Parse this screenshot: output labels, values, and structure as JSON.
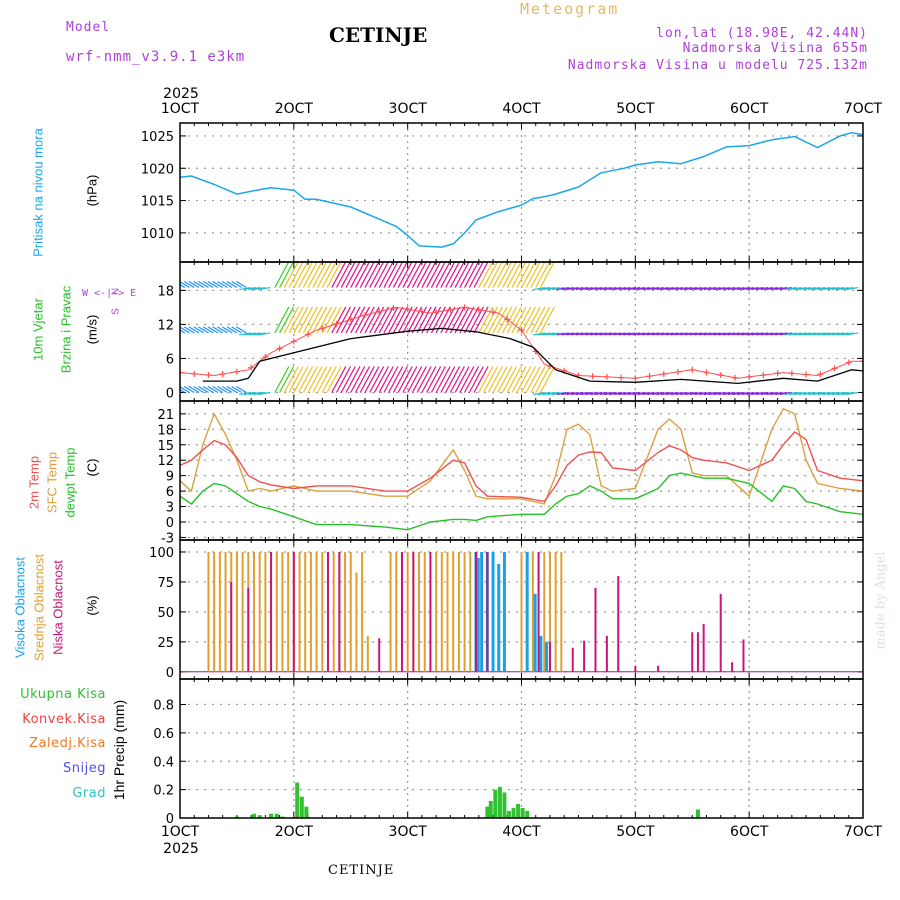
{
  "header": {
    "model_label": "Model",
    "model_name": "wrf-nmm_v3.9.1 e3km",
    "title": "CETINJE",
    "meteogram": "Meteogram",
    "lonlat": "lon,lat (18.98E, 42.44N)",
    "elevation": "Nadmorska Visina 655m",
    "model_elevation": "Nadmorska Visina u modelu 725.132m",
    "footer_title": "CETINJE",
    "watermark": "made by Angel"
  },
  "colors": {
    "pressure": "#1aa7ec",
    "wind_speed": "#000000",
    "gust": "#ff5050",
    "temp2m": "#f05050",
    "sfc": "#dca040",
    "dewpt": "#28c028",
    "high_cloud": "#1aa0e6",
    "mid_cloud": "#e0a030",
    "low_cloud": "#c8147c",
    "precip_total": "#30c030",
    "precip_conv": "#f04040",
    "frozen": "#f07820",
    "snow": "#5050e0",
    "hail": "#30c0c0"
  },
  "chart_data": [
    {
      "type": "line",
      "panel": "pressure",
      "time_axis": {
        "year": "2025",
        "range_days": [
          1,
          7
        ],
        "tick_labels": [
          "1OCT",
          "2OCT",
          "3OCT",
          "4OCT",
          "5OCT",
          "6OCT",
          "7OCT"
        ]
      },
      "ylabel_lines": [
        "Pritisak na nivou mora",
        "(hPa)"
      ],
      "yticks": [
        1010,
        1015,
        1020,
        1025
      ],
      "ylim": [
        1005.5,
        1027
      ],
      "series": [
        {
          "name": "Pritisak na nivou mora",
          "x": [
            1.0,
            1.1,
            1.3,
            1.5,
            1.7,
            1.8,
            2.0,
            2.1,
            2.2,
            2.3,
            2.5,
            2.7,
            2.9,
            3.0,
            3.1,
            3.2,
            3.3,
            3.4,
            3.5,
            3.6,
            3.8,
            4.0,
            4.1,
            4.2,
            4.3,
            4.5,
            4.7,
            4.9,
            5.0,
            5.2,
            5.4,
            5.6,
            5.8,
            6.0,
            6.2,
            6.4,
            6.6,
            6.8,
            6.9,
            7.0
          ],
          "values": [
            1018.6,
            1018.8,
            1017.5,
            1016.0,
            1016.7,
            1017.0,
            1016.6,
            1015.2,
            1015.2,
            1014.8,
            1014.0,
            1012.5,
            1011.0,
            1009.6,
            1008.0,
            1007.9,
            1007.8,
            1008.3,
            1010.0,
            1012.0,
            1013.3,
            1014.3,
            1015.3,
            1015.6,
            1016.0,
            1017.1,
            1019.3,
            1020.0,
            1020.5,
            1021.0,
            1020.7,
            1021.8,
            1023.3,
            1023.5,
            1024.4,
            1024.9,
            1023.2,
            1025.0,
            1025.5,
            1025.2
          ]
        }
      ]
    },
    {
      "type": "line",
      "panel": "wind",
      "ylabel_lines": [
        "10m Vjetar",
        "Brzina i Pravac",
        "(m/s)"
      ],
      "compass": [
        "N",
        "W <-|-> E",
        "S"
      ],
      "yticks": [
        0,
        6,
        12,
        18
      ],
      "ylim": [
        -1.5,
        23
      ],
      "series": [
        {
          "name": "Brzina",
          "x": [
            1.2,
            1.5,
            1.6,
            1.7,
            2.0,
            2.5,
            3.0,
            3.3,
            3.6,
            3.9,
            4.1,
            4.3,
            4.6,
            5.0,
            5.4,
            5.9,
            6.3,
            6.6,
            6.9,
            7.0
          ],
          "values": [
            2.0,
            2.0,
            2.5,
            5.5,
            7.0,
            9.5,
            10.8,
            11.3,
            10.7,
            9.5,
            8.0,
            4.0,
            2.0,
            1.8,
            2.3,
            1.6,
            2.5,
            2.0,
            4.0,
            3.8
          ]
        },
        {
          "name": "Udari",
          "x": [
            1.0,
            1.3,
            1.6,
            1.8,
            2.2,
            2.6,
            2.9,
            3.2,
            3.5,
            3.8,
            4.0,
            4.2,
            4.5,
            5.0,
            5.5,
            5.9,
            6.3,
            6.6,
            6.9,
            7.0
          ],
          "values": [
            3.5,
            3.0,
            4.0,
            7.0,
            11.0,
            13.5,
            15.0,
            14.0,
            15.0,
            14.0,
            11.0,
            5.0,
            3.0,
            2.5,
            4.0,
            2.5,
            3.5,
            3.0,
            5.5,
            5.5
          ]
        }
      ]
    },
    {
      "type": "line",
      "panel": "temperature",
      "ylabel_lines": [
        "2m Temp",
        "SFC Temp",
        "dewpt Temp",
        "(C)"
      ],
      "yticks": [
        -3,
        0,
        3,
        6,
        9,
        12,
        15,
        18,
        21
      ],
      "ylim": [
        -3.5,
        23.5
      ],
      "series": [
        {
          "name": "2m Temp",
          "x": [
            1.0,
            1.1,
            1.2,
            1.3,
            1.4,
            1.5,
            1.6,
            1.7,
            1.8,
            2.0,
            2.2,
            2.5,
            2.8,
            3.0,
            3.2,
            3.4,
            3.5,
            3.6,
            3.7,
            4.0,
            4.2,
            4.3,
            4.4,
            4.5,
            4.6,
            4.7,
            4.8,
            5.0,
            5.2,
            5.3,
            5.4,
            5.5,
            5.6,
            5.8,
            6.0,
            6.2,
            6.3,
            6.4,
            6.5,
            6.6,
            6.8,
            7.0
          ],
          "values": [
            11.0,
            12.0,
            14.0,
            15.8,
            15.0,
            12.5,
            9.0,
            7.8,
            7.2,
            6.5,
            7.0,
            7.0,
            6.0,
            6.0,
            8.5,
            12.0,
            11.5,
            7.0,
            5.0,
            4.8,
            4.0,
            7.0,
            11.0,
            13.0,
            13.6,
            13.5,
            10.5,
            10.0,
            13.5,
            14.8,
            14.0,
            12.5,
            12.0,
            11.5,
            10.0,
            12.0,
            15.0,
            17.5,
            16.0,
            10.0,
            8.5,
            8.0
          ]
        },
        {
          "name": "SFC Temp",
          "x": [
            1.0,
            1.1,
            1.2,
            1.3,
            1.4,
            1.5,
            1.6,
            1.7,
            1.8,
            2.0,
            2.2,
            2.5,
            2.8,
            3.0,
            3.2,
            3.4,
            3.5,
            3.6,
            3.7,
            4.0,
            4.2,
            4.3,
            4.4,
            4.5,
            4.6,
            4.7,
            4.8,
            5.0,
            5.2,
            5.3,
            5.4,
            5.5,
            5.6,
            5.8,
            6.0,
            6.2,
            6.3,
            6.4,
            6.5,
            6.6,
            6.8,
            7.0
          ],
          "values": [
            8.0,
            6.0,
            15.0,
            21.0,
            17.0,
            12.0,
            6.0,
            6.5,
            6.0,
            7.0,
            6.0,
            6.0,
            5.0,
            5.0,
            8.0,
            14.0,
            10.0,
            5.0,
            4.5,
            4.5,
            3.5,
            9.0,
            18.0,
            19.0,
            17.0,
            7.0,
            6.0,
            6.5,
            18.0,
            20.0,
            18.0,
            9.5,
            9.0,
            9.0,
            5.0,
            18.0,
            22.0,
            21.0,
            12.0,
            7.5,
            6.5,
            6.0
          ]
        },
        {
          "name": "dewpt Temp",
          "x": [
            1.0,
            1.1,
            1.2,
            1.3,
            1.4,
            1.5,
            1.6,
            1.7,
            1.8,
            2.0,
            2.2,
            2.5,
            2.8,
            3.0,
            3.2,
            3.4,
            3.5,
            3.6,
            3.7,
            4.0,
            4.2,
            4.3,
            4.4,
            4.5,
            4.6,
            4.7,
            4.8,
            5.0,
            5.2,
            5.3,
            5.4,
            5.5,
            5.6,
            5.8,
            6.0,
            6.2,
            6.3,
            6.4,
            6.5,
            6.6,
            6.8,
            7.0
          ],
          "values": [
            5.0,
            3.5,
            6.0,
            7.5,
            7.0,
            5.5,
            4.0,
            3.0,
            2.5,
            1.0,
            -0.5,
            -0.5,
            -1.0,
            -1.5,
            0.0,
            0.5,
            0.5,
            0.3,
            1.0,
            1.5,
            1.5,
            3.5,
            5.0,
            5.5,
            7.0,
            6.0,
            4.5,
            4.5,
            6.5,
            9.0,
            9.5,
            9.0,
            8.5,
            8.5,
            7.5,
            4.0,
            7.0,
            6.5,
            4.0,
            3.5,
            2.0,
            1.5
          ]
        }
      ]
    },
    {
      "type": "bar",
      "panel": "clouds",
      "ylabel_lines": [
        "Visoka Oblacnost",
        "Srednja Oblacnost",
        "Niska Oblacnost",
        "(%)"
      ],
      "yticks": [
        0,
        25,
        50,
        75,
        100
      ],
      "ylim": [
        -6,
        110
      ],
      "series": [
        {
          "name": "Visoka Oblacnost",
          "x": [
            3.6,
            3.62,
            3.65,
            3.7,
            3.75,
            3.8,
            3.85,
            4.05,
            4.12,
            4.17,
            4.22
          ],
          "values": [
            100,
            95,
            100,
            100,
            100,
            90,
            100,
            100,
            65,
            30,
            25
          ]
        },
        {
          "name": "Srednja Oblacnost",
          "x": [
            1.25,
            1.3,
            1.35,
            1.4,
            1.45,
            1.5,
            1.55,
            1.6,
            1.65,
            1.7,
            1.75,
            1.8,
            1.85,
            1.9,
            1.95,
            2.0,
            2.05,
            2.1,
            2.15,
            2.2,
            2.25,
            2.3,
            2.35,
            2.4,
            2.45,
            2.5,
            2.55,
            2.6,
            2.65,
            2.85,
            2.9,
            2.95,
            3.0,
            3.05,
            3.1,
            3.15,
            3.2,
            3.25,
            3.3,
            3.35,
            3.4,
            3.45,
            3.5,
            3.55,
            3.7,
            4.0,
            4.05,
            4.1,
            4.15,
            4.2,
            4.25,
            4.3,
            4.35
          ],
          "values": [
            100,
            100,
            100,
            100,
            100,
            100,
            100,
            100,
            100,
            100,
            100,
            100,
            100,
            100,
            100,
            100,
            100,
            100,
            100,
            100,
            100,
            100,
            100,
            100,
            100,
            100,
            83,
            100,
            30,
            100,
            100,
            100,
            100,
            100,
            100,
            100,
            100,
            100,
            100,
            100,
            100,
            100,
            100,
            100,
            25,
            100,
            100,
            100,
            100,
            100,
            100,
            100,
            100
          ]
        },
        {
          "name": "Niska Oblacnost",
          "x": [
            1.45,
            1.6,
            1.8,
            2.0,
            2.3,
            2.4,
            2.75,
            2.95,
            3.05,
            3.2,
            3.6,
            3.7,
            4.15,
            4.25,
            4.45,
            4.55,
            4.65,
            4.75,
            4.85,
            5.0,
            5.2,
            5.5,
            5.55,
            5.6,
            5.75,
            5.85,
            5.95
          ],
          "values": [
            75,
            70,
            100,
            100,
            100,
            100,
            28,
            100,
            100,
            100,
            100,
            100,
            100,
            25,
            20,
            26,
            70,
            30,
            80,
            5,
            5,
            33,
            33,
            40,
            65,
            8,
            27
          ]
        }
      ]
    },
    {
      "type": "bar",
      "panel": "precipitation",
      "ylabel_lines": [
        "1hr Precip (mm)"
      ],
      "legend": [
        "Ukupna Kisa",
        "Konvek.Kisa",
        "Zaledj.Kisa",
        "Snijeg",
        "Grad"
      ],
      "yticks": [
        0,
        0.2,
        0.4,
        0.6,
        0.8
      ],
      "ylim": [
        0,
        0.98
      ],
      "series": [
        {
          "name": "Ukupna Kisa",
          "x": [
            1.5,
            1.65,
            1.7,
            1.8,
            1.85,
            1.9,
            2.03,
            2.07,
            2.11,
            3.7,
            3.73,
            3.77,
            3.81,
            3.85,
            3.89,
            3.93,
            3.97,
            4.01,
            4.05,
            5.55
          ],
          "values": [
            0.01,
            0.03,
            0.02,
            0.03,
            0.03,
            0.01,
            0.25,
            0.15,
            0.08,
            0.08,
            0.12,
            0.2,
            0.22,
            0.18,
            0.05,
            0.07,
            0.1,
            0.07,
            0.05,
            0.06
          ]
        },
        {
          "name": "Konvek.Kisa",
          "x": [
            2.03
          ],
          "values": [
            0.01
          ]
        }
      ]
    }
  ]
}
